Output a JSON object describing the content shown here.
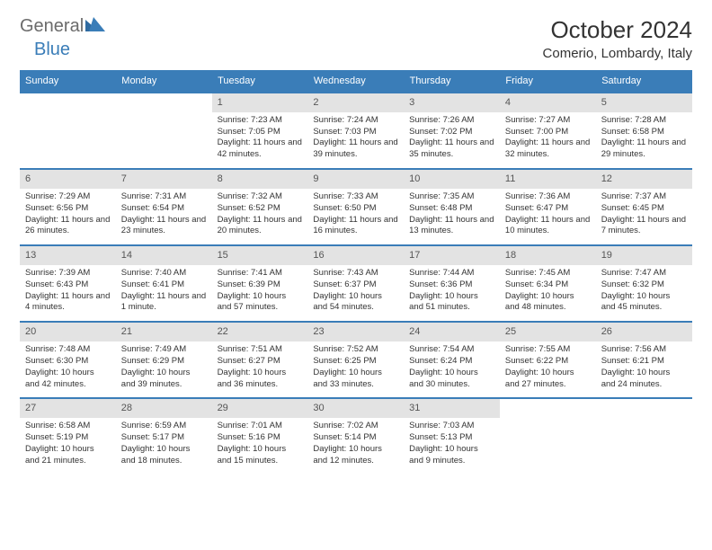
{
  "logo": {
    "text_gray": "General",
    "text_blue": "Blue"
  },
  "title": "October 2024",
  "location": "Comerio, Lombardy, Italy",
  "colors": {
    "header_bg": "#3a7db8",
    "header_text": "#ffffff",
    "daynum_bg": "#e3e3e3",
    "border": "#3a7db8",
    "body_text": "#333333",
    "logo_gray": "#6b6b6b"
  },
  "fonts": {
    "title_size": 26,
    "location_size": 15,
    "dayhead_size": 11,
    "body_size": 9.5
  },
  "day_headers": [
    "Sunday",
    "Monday",
    "Tuesday",
    "Wednesday",
    "Thursday",
    "Friday",
    "Saturday"
  ],
  "weeks": [
    [
      {
        "n": "",
        "sr": "",
        "ss": "",
        "dl": ""
      },
      {
        "n": "",
        "sr": "",
        "ss": "",
        "dl": ""
      },
      {
        "n": "1",
        "sr": "Sunrise: 7:23 AM",
        "ss": "Sunset: 7:05 PM",
        "dl": "Daylight: 11 hours and 42 minutes."
      },
      {
        "n": "2",
        "sr": "Sunrise: 7:24 AM",
        "ss": "Sunset: 7:03 PM",
        "dl": "Daylight: 11 hours and 39 minutes."
      },
      {
        "n": "3",
        "sr": "Sunrise: 7:26 AM",
        "ss": "Sunset: 7:02 PM",
        "dl": "Daylight: 11 hours and 35 minutes."
      },
      {
        "n": "4",
        "sr": "Sunrise: 7:27 AM",
        "ss": "Sunset: 7:00 PM",
        "dl": "Daylight: 11 hours and 32 minutes."
      },
      {
        "n": "5",
        "sr": "Sunrise: 7:28 AM",
        "ss": "Sunset: 6:58 PM",
        "dl": "Daylight: 11 hours and 29 minutes."
      }
    ],
    [
      {
        "n": "6",
        "sr": "Sunrise: 7:29 AM",
        "ss": "Sunset: 6:56 PM",
        "dl": "Daylight: 11 hours and 26 minutes."
      },
      {
        "n": "7",
        "sr": "Sunrise: 7:31 AM",
        "ss": "Sunset: 6:54 PM",
        "dl": "Daylight: 11 hours and 23 minutes."
      },
      {
        "n": "8",
        "sr": "Sunrise: 7:32 AM",
        "ss": "Sunset: 6:52 PM",
        "dl": "Daylight: 11 hours and 20 minutes."
      },
      {
        "n": "9",
        "sr": "Sunrise: 7:33 AM",
        "ss": "Sunset: 6:50 PM",
        "dl": "Daylight: 11 hours and 16 minutes."
      },
      {
        "n": "10",
        "sr": "Sunrise: 7:35 AM",
        "ss": "Sunset: 6:48 PM",
        "dl": "Daylight: 11 hours and 13 minutes."
      },
      {
        "n": "11",
        "sr": "Sunrise: 7:36 AM",
        "ss": "Sunset: 6:47 PM",
        "dl": "Daylight: 11 hours and 10 minutes."
      },
      {
        "n": "12",
        "sr": "Sunrise: 7:37 AM",
        "ss": "Sunset: 6:45 PM",
        "dl": "Daylight: 11 hours and 7 minutes."
      }
    ],
    [
      {
        "n": "13",
        "sr": "Sunrise: 7:39 AM",
        "ss": "Sunset: 6:43 PM",
        "dl": "Daylight: 11 hours and 4 minutes."
      },
      {
        "n": "14",
        "sr": "Sunrise: 7:40 AM",
        "ss": "Sunset: 6:41 PM",
        "dl": "Daylight: 11 hours and 1 minute."
      },
      {
        "n": "15",
        "sr": "Sunrise: 7:41 AM",
        "ss": "Sunset: 6:39 PM",
        "dl": "Daylight: 10 hours and 57 minutes."
      },
      {
        "n": "16",
        "sr": "Sunrise: 7:43 AM",
        "ss": "Sunset: 6:37 PM",
        "dl": "Daylight: 10 hours and 54 minutes."
      },
      {
        "n": "17",
        "sr": "Sunrise: 7:44 AM",
        "ss": "Sunset: 6:36 PM",
        "dl": "Daylight: 10 hours and 51 minutes."
      },
      {
        "n": "18",
        "sr": "Sunrise: 7:45 AM",
        "ss": "Sunset: 6:34 PM",
        "dl": "Daylight: 10 hours and 48 minutes."
      },
      {
        "n": "19",
        "sr": "Sunrise: 7:47 AM",
        "ss": "Sunset: 6:32 PM",
        "dl": "Daylight: 10 hours and 45 minutes."
      }
    ],
    [
      {
        "n": "20",
        "sr": "Sunrise: 7:48 AM",
        "ss": "Sunset: 6:30 PM",
        "dl": "Daylight: 10 hours and 42 minutes."
      },
      {
        "n": "21",
        "sr": "Sunrise: 7:49 AM",
        "ss": "Sunset: 6:29 PM",
        "dl": "Daylight: 10 hours and 39 minutes."
      },
      {
        "n": "22",
        "sr": "Sunrise: 7:51 AM",
        "ss": "Sunset: 6:27 PM",
        "dl": "Daylight: 10 hours and 36 minutes."
      },
      {
        "n": "23",
        "sr": "Sunrise: 7:52 AM",
        "ss": "Sunset: 6:25 PM",
        "dl": "Daylight: 10 hours and 33 minutes."
      },
      {
        "n": "24",
        "sr": "Sunrise: 7:54 AM",
        "ss": "Sunset: 6:24 PM",
        "dl": "Daylight: 10 hours and 30 minutes."
      },
      {
        "n": "25",
        "sr": "Sunrise: 7:55 AM",
        "ss": "Sunset: 6:22 PM",
        "dl": "Daylight: 10 hours and 27 minutes."
      },
      {
        "n": "26",
        "sr": "Sunrise: 7:56 AM",
        "ss": "Sunset: 6:21 PM",
        "dl": "Daylight: 10 hours and 24 minutes."
      }
    ],
    [
      {
        "n": "27",
        "sr": "Sunrise: 6:58 AM",
        "ss": "Sunset: 5:19 PM",
        "dl": "Daylight: 10 hours and 21 minutes."
      },
      {
        "n": "28",
        "sr": "Sunrise: 6:59 AM",
        "ss": "Sunset: 5:17 PM",
        "dl": "Daylight: 10 hours and 18 minutes."
      },
      {
        "n": "29",
        "sr": "Sunrise: 7:01 AM",
        "ss": "Sunset: 5:16 PM",
        "dl": "Daylight: 10 hours and 15 minutes."
      },
      {
        "n": "30",
        "sr": "Sunrise: 7:02 AM",
        "ss": "Sunset: 5:14 PM",
        "dl": "Daylight: 10 hours and 12 minutes."
      },
      {
        "n": "31",
        "sr": "Sunrise: 7:03 AM",
        "ss": "Sunset: 5:13 PM",
        "dl": "Daylight: 10 hours and 9 minutes."
      },
      {
        "n": "",
        "sr": "",
        "ss": "",
        "dl": ""
      },
      {
        "n": "",
        "sr": "",
        "ss": "",
        "dl": ""
      }
    ]
  ]
}
